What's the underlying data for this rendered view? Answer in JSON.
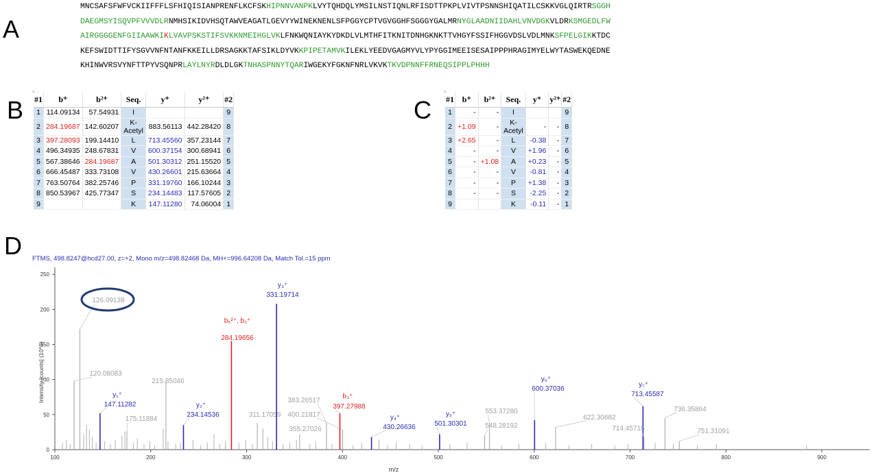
{
  "panels": {
    "a": "A",
    "b": "B",
    "c": "C",
    "d": "D"
  },
  "sequence_lines": [
    [
      {
        "t": "MNCSAFSFWFVCKIIFFFLSFHIQISIANPRENFLKCFSK",
        "c": "k"
      },
      {
        "t": "HIPNNVANPK",
        "c": "g"
      },
      {
        "t": "LVYTQHDQLYMSILNSTIQNLRFISDTTPKPLVIVTPSNNSHIQATILCSKKVGLQIRTR",
        "c": "k"
      },
      {
        "t": "SGGH",
        "c": "g"
      }
    ],
    [
      {
        "t": "DAEGMSYISQVPFVVVDLR",
        "c": "g"
      },
      {
        "t": "NMHSIKIDVHSQTAWVEAGATLGEVYYWINEKNENLSFPGGYCPTVGVGGHFSGGGYGALMR",
        "c": "k"
      },
      {
        "t": "NYGLAADNIIDAHLVNVDGK",
        "c": "g"
      },
      {
        "t": "VLDR",
        "c": "k"
      },
      {
        "t": "KSMGEDLFW",
        "c": "g"
      }
    ],
    [
      {
        "t": "AIRGGGGENFGIIAAWKI",
        "c": "g"
      },
      {
        "t": "K",
        "c": "r"
      },
      {
        "t": "LVAVPSKSTIFSVKKNMEIHGLVK",
        "c": "g"
      },
      {
        "t": "LFNKWQNIAYKYDKDLVLMTHFITKNITDNHGKNKTTVHGYFSSIFHGGVDSLVDLMNK",
        "c": "k"
      },
      {
        "t": "SFPELGIK",
        "c": "g"
      },
      {
        "t": "KTDC",
        "c": "k"
      }
    ],
    [
      {
        "t": "KEFSWIDTTIFYSGVVNFNTANFKKEILLDRSAGKKTAFSIKLDYVK",
        "c": "k"
      },
      {
        "t": "KPIPETAMVK",
        "c": "g"
      },
      {
        "t": "ILEKLYEEDVGAGMYVLYPYGGIMEEISESAIPPPHRAGIMYELWYTASWEKQEDNE",
        "c": "k"
      }
    ],
    [
      {
        "t": "KHINWVRSVYNFTTPYVSQNPR",
        "c": "k"
      },
      {
        "t": "LAYLNYR",
        "c": "g"
      },
      {
        "t": "DLDLGK",
        "c": "k"
      },
      {
        "t": "TNHASPNNYTQAR",
        "c": "g"
      },
      {
        "t": "IWGEKYFGKNFNRLVKVK",
        "c": "k"
      },
      {
        "t": "TKVDPNNFFRNEQSIPPLPHHH",
        "c": "g"
      }
    ]
  ],
  "colors": {
    "green": "#2e9a2e",
    "red": "#e02020",
    "blue": "#2a2ab8",
    "gray": "#a0a0a0",
    "cellblue": "#cfe0f0"
  },
  "table_b": {
    "headers": [
      "#1",
      "b⁺",
      "b²⁺",
      "Seq.",
      "y⁺",
      "y²⁺",
      "#2"
    ],
    "rows": [
      {
        "i": "1",
        "b1": "114.09134",
        "b1c": "k",
        "b2": "57.54931",
        "b2c": "k",
        "seq": "I",
        "y1": "",
        "y1c": "k",
        "y2": "",
        "i2": "9"
      },
      {
        "i": "2",
        "b1": "284.19687",
        "b1c": "r",
        "b2": "142.60207",
        "b2c": "k",
        "seq": "K-Acetyl",
        "y1": "883.56113",
        "y1c": "k",
        "y2": "442.28420",
        "i2": "8"
      },
      {
        "i": "3",
        "b1": "397.28093",
        "b1c": "r",
        "b2": "199.14410",
        "b2c": "k",
        "seq": "L",
        "y1": "713.45560",
        "y1c": "b",
        "y2": "357.23144",
        "i2": "7"
      },
      {
        "i": "4",
        "b1": "496.34935",
        "b1c": "k",
        "b2": "248.67831",
        "b2c": "k",
        "seq": "V",
        "y1": "600.37154",
        "y1c": "b",
        "y2": "300.68941",
        "i2": "6"
      },
      {
        "i": "5",
        "b1": "567.38646",
        "b1c": "k",
        "b2": "284.19687",
        "b2c": "r",
        "seq": "A",
        "y1": "501.30312",
        "y1c": "b",
        "y2": "251.15520",
        "i2": "5"
      },
      {
        "i": "6",
        "b1": "666.45487",
        "b1c": "k",
        "b2": "333.73108",
        "b2c": "k",
        "seq": "V",
        "y1": "430.26601",
        "y1c": "b",
        "y2": "215.63664",
        "i2": "4"
      },
      {
        "i": "7",
        "b1": "763.50764",
        "b1c": "k",
        "b2": "382.25746",
        "b2c": "k",
        "seq": "P",
        "y1": "331.19760",
        "y1c": "b",
        "y2": "166.10244",
        "i2": "3"
      },
      {
        "i": "8",
        "b1": "850.53967",
        "b1c": "k",
        "b2": "425.77347",
        "b2c": "k",
        "seq": "S",
        "y1": "234.14483",
        "y1c": "b",
        "y2": "117.57605",
        "i2": "2"
      },
      {
        "i": "9",
        "b1": "",
        "b1c": "k",
        "b2": "",
        "b2c": "k",
        "seq": "K",
        "y1": "147.11280",
        "y1c": "b",
        "y2": "74.06004",
        "i2": "1"
      }
    ]
  },
  "table_c": {
    "headers": [
      "#1",
      "b⁺",
      "b²⁺",
      "Seq.",
      "y⁺",
      "y²⁺",
      "#2"
    ],
    "rows": [
      {
        "i": "1",
        "b1": "-",
        "b1c": "k",
        "b2": "-",
        "b2c": "k",
        "seq": "I",
        "y1": "",
        "y1c": "k",
        "y2": "",
        "i2": "9"
      },
      {
        "i": "2",
        "b1": "+1.09",
        "b1c": "r",
        "b2": "-",
        "b2c": "k",
        "seq": "K-Acetyl",
        "y1": "-",
        "y1c": "k",
        "y2": "-",
        "i2": "8"
      },
      {
        "i": "3",
        "b1": "+2.65",
        "b1c": "r",
        "b2": "-",
        "b2c": "k",
        "seq": "L",
        "y1": "-0.38",
        "y1c": "b",
        "y2": "-",
        "i2": "7"
      },
      {
        "i": "4",
        "b1": "-",
        "b1c": "k",
        "b2": "-",
        "b2c": "k",
        "seq": "V",
        "y1": "+1.96",
        "y1c": "b",
        "y2": "-",
        "i2": "6"
      },
      {
        "i": "5",
        "b1": "-",
        "b1c": "k",
        "b2": "+1.08",
        "b2c": "r",
        "seq": "A",
        "y1": "+0.23",
        "y1c": "b",
        "y2": "-",
        "i2": "5"
      },
      {
        "i": "6",
        "b1": "-",
        "b1c": "k",
        "b2": "-",
        "b2c": "k",
        "seq": "V",
        "y1": "-0.81",
        "y1c": "b",
        "y2": "-",
        "i2": "4"
      },
      {
        "i": "7",
        "b1": "-",
        "b1c": "k",
        "b2": "-",
        "b2c": "k",
        "seq": "P",
        "y1": "+1.38",
        "y1c": "b",
        "y2": "-",
        "i2": "3"
      },
      {
        "i": "8",
        "b1": "-",
        "b1c": "k",
        "b2": "-",
        "b2c": "k",
        "seq": "S",
        "y1": "-2.25",
        "y1c": "b",
        "y2": "-",
        "i2": "2"
      },
      {
        "i": "9",
        "b1": "",
        "b1c": "k",
        "b2": "",
        "b2c": "k",
        "seq": "K",
        "y1": "-0.11",
        "y1c": "b",
        "y2": "-",
        "i2": "1"
      }
    ]
  },
  "spectrum_header": "FTMS, 498.8247@hcd27.00, z=+2, Mono m/z=498.82468 Da, MH+=996.64208 Da, Match Tol.=15 ppm",
  "chart_data": {
    "type": "bar",
    "title": "",
    "xlabel": "m/z",
    "ylabel": "Intensity [counts] (10^3)",
    "xlim": [
      100,
      950
    ],
    "ylim": [
      0,
      260
    ],
    "xticks": [
      100,
      200,
      300,
      400,
      500,
      600,
      700,
      800,
      900
    ],
    "yticks": [
      0,
      50,
      100,
      150,
      200,
      250
    ],
    "peaks": [
      {
        "mz": 126.09138,
        "y": 172,
        "color": "gray",
        "label": "126.09138"
      },
      {
        "mz": 120.08083,
        "y": 98,
        "color": "gray",
        "label": "120.08083"
      },
      {
        "mz": 147.11282,
        "y": 52,
        "color": "blue",
        "label": "147.11282",
        "ion": "y1+"
      },
      {
        "mz": 175.11884,
        "y": 27,
        "color": "gray",
        "label": "175.11884"
      },
      {
        "mz": 215.85046,
        "y": 98,
        "color": "gray",
        "label": "215.85046"
      },
      {
        "mz": 234.14536,
        "y": 35,
        "color": "blue",
        "label": "234.14536",
        "ion": "y2+"
      },
      {
        "mz": 284.19656,
        "y": 155,
        "color": "red",
        "label": "284.19656",
        "ion": "b5 2+, b2+"
      },
      {
        "mz": 311.17059,
        "y": 38,
        "color": "gray",
        "label": "311.17059"
      },
      {
        "mz": 331.19714,
        "y": 208,
        "color": "blue",
        "label": "331.19714",
        "ion": "y3+"
      },
      {
        "mz": 383.26517,
        "y": 38,
        "color": "gray",
        "label": "383.26517"
      },
      {
        "mz": 400.21817,
        "y": 28,
        "color": "gray",
        "label": "400.21817"
      },
      {
        "mz": 355.27026,
        "y": 22,
        "color": "gray",
        "label": "355.27026"
      },
      {
        "mz": 397.27988,
        "y": 52,
        "color": "red",
        "label": "397.27988",
        "ion": "b3+"
      },
      {
        "mz": 430.26636,
        "y": 18,
        "color": "blue",
        "label": "430.26636",
        "ion": "y4+"
      },
      {
        "mz": 501.30301,
        "y": 22,
        "color": "blue",
        "label": "501.30301",
        "ion": "y5+"
      },
      {
        "mz": 553.3728,
        "y": 38,
        "color": "gray",
        "label": "553.37280"
      },
      {
        "mz": 548.28192,
        "y": 20,
        "color": "gray",
        "label": "548.28192"
      },
      {
        "mz": 600.37036,
        "y": 42,
        "color": "blue",
        "label": "600.37036",
        "ion": "y6+"
      },
      {
        "mz": 622.30682,
        "y": 32,
        "color": "gray",
        "label": "622.30682"
      },
      {
        "mz": 713.45587,
        "y": 62,
        "color": "blue",
        "label": "713.45587",
        "ion": "y7+"
      },
      {
        "mz": 714.45715,
        "y": 18,
        "color": "gray",
        "label": "714.45715"
      },
      {
        "mz": 736.35864,
        "y": 45,
        "color": "gray",
        "label": "736.35864"
      },
      {
        "mz": 751.31091,
        "y": 12,
        "color": "gray",
        "label": "751.31091"
      }
    ],
    "minor_peaks": [
      {
        "mz": 108,
        "y": 10
      },
      {
        "mz": 112,
        "y": 14
      },
      {
        "mz": 116,
        "y": 8
      },
      {
        "mz": 130,
        "y": 22
      },
      {
        "mz": 133,
        "y": 35
      },
      {
        "mz": 136,
        "y": 28
      },
      {
        "mz": 139,
        "y": 18
      },
      {
        "mz": 143,
        "y": 10
      },
      {
        "mz": 152,
        "y": 12
      },
      {
        "mz": 158,
        "y": 8
      },
      {
        "mz": 163,
        "y": 14
      },
      {
        "mz": 170,
        "y": 20
      },
      {
        "mz": 173,
        "y": 26
      },
      {
        "mz": 182,
        "y": 10
      },
      {
        "mz": 186,
        "y": 16
      },
      {
        "mz": 193,
        "y": 8
      },
      {
        "mz": 199,
        "y": 12
      },
      {
        "mz": 204,
        "y": 6
      },
      {
        "mz": 213,
        "y": 30
      },
      {
        "mz": 218,
        "y": 12
      },
      {
        "mz": 226,
        "y": 8
      },
      {
        "mz": 231,
        "y": 10
      },
      {
        "mz": 244,
        "y": 14
      },
      {
        "mz": 252,
        "y": 6
      },
      {
        "mz": 259,
        "y": 10
      },
      {
        "mz": 266,
        "y": 22
      },
      {
        "mz": 272,
        "y": 8
      },
      {
        "mz": 278,
        "y": 12
      },
      {
        "mz": 292,
        "y": 10
      },
      {
        "mz": 299,
        "y": 14
      },
      {
        "mz": 306,
        "y": 8
      },
      {
        "mz": 317,
        "y": 30
      },
      {
        "mz": 322,
        "y": 18
      },
      {
        "mz": 327,
        "y": 12
      },
      {
        "mz": 338,
        "y": 8
      },
      {
        "mz": 345,
        "y": 10
      },
      {
        "mz": 352,
        "y": 14
      },
      {
        "mz": 366,
        "y": 8
      },
      {
        "mz": 372,
        "y": 12
      },
      {
        "mz": 389,
        "y": 8
      },
      {
        "mz": 411,
        "y": 6
      },
      {
        "mz": 420,
        "y": 10
      },
      {
        "mz": 438,
        "y": 14
      },
      {
        "mz": 447,
        "y": 6
      },
      {
        "mz": 456,
        "y": 10
      },
      {
        "mz": 470,
        "y": 8
      },
      {
        "mz": 483,
        "y": 6
      },
      {
        "mz": 512,
        "y": 8
      },
      {
        "mz": 530,
        "y": 10
      },
      {
        "mz": 566,
        "y": 6
      },
      {
        "mz": 584,
        "y": 8
      },
      {
        "mz": 612,
        "y": 10
      },
      {
        "mz": 636,
        "y": 6
      },
      {
        "mz": 660,
        "y": 8
      },
      {
        "mz": 684,
        "y": 6
      },
      {
        "mz": 698,
        "y": 8
      },
      {
        "mz": 726,
        "y": 10
      },
      {
        "mz": 745,
        "y": 8
      },
      {
        "mz": 770,
        "y": 6
      },
      {
        "mz": 790,
        "y": 8
      },
      {
        "mz": 884,
        "y": 6
      }
    ],
    "ion_labels": [
      {
        "ion": "y1+",
        "sup": "+",
        "sub": "1",
        "base": "y",
        "mz": 147.11282,
        "color": "blue"
      },
      {
        "ion": "y2+",
        "sup": "+",
        "sub": "2",
        "base": "y",
        "mz": 234.14536,
        "color": "blue"
      },
      {
        "ion": "b5 2+, b2+",
        "text": "b5 2+, b2+",
        "mz": 284.19656,
        "color": "red"
      },
      {
        "ion": "y3+",
        "sup": "+",
        "sub": "3",
        "base": "y",
        "mz": 331.19714,
        "color": "blue"
      },
      {
        "ion": "b3+",
        "sup": "+",
        "sub": "3",
        "base": "b",
        "mz": 397.27988,
        "color": "red"
      },
      {
        "ion": "y4+",
        "sup": "+",
        "sub": "4",
        "base": "y",
        "mz": 430.26636,
        "color": "blue"
      },
      {
        "ion": "y5+",
        "sup": "+",
        "sub": "5",
        "base": "y",
        "mz": 501.30301,
        "color": "blue"
      },
      {
        "ion": "y6+",
        "sup": "+",
        "sub": "6",
        "base": "y",
        "mz": 600.37036,
        "color": "blue"
      },
      {
        "ion": "y7+",
        "sup": "+",
        "sub": "7",
        "base": "y",
        "mz": 713.45587,
        "color": "blue"
      }
    ]
  }
}
